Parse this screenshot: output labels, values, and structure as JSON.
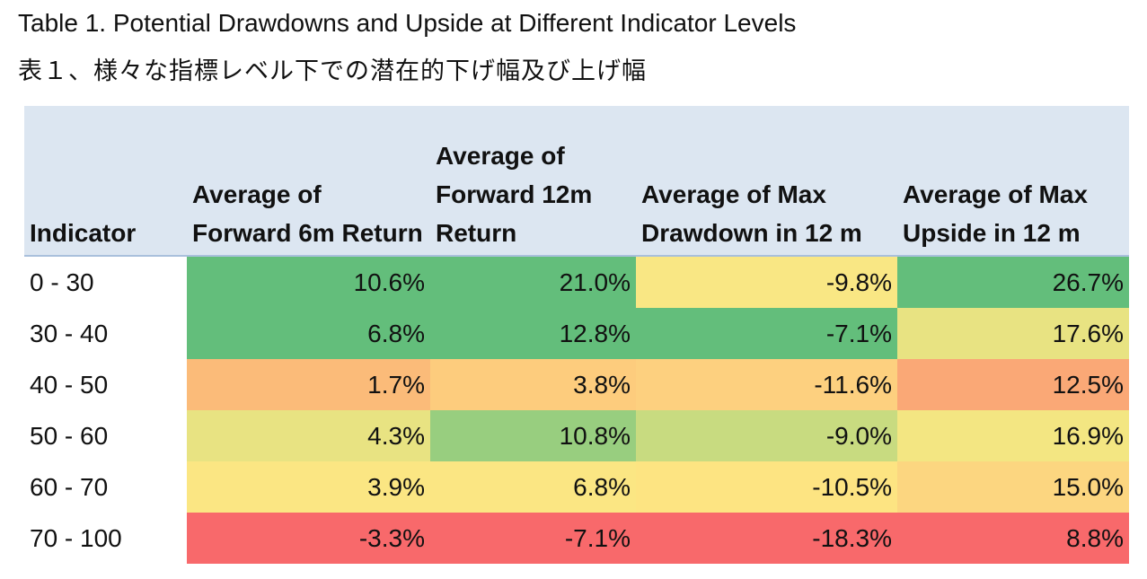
{
  "title": "Table 1. Potential Drawdowns and Upside at Different Indicator Levels",
  "subtitle": "表１、様々な指標レベル下での潜在的下げ幅及び上げ幅",
  "table": {
    "headers": [
      "Indicator",
      "Average of Forward 6m Return",
      "Average of Forward 12m Return",
      "Average of Max Drawdown in 12 m",
      "Average of Max Upside in 12 m"
    ],
    "rows": [
      {
        "indicator": "0 - 30",
        "values": [
          "10.6%",
          "21.0%",
          "-9.8%",
          "26.7%"
        ],
        "colors": [
          "#63be7b",
          "#63be7b",
          "#f9e784",
          "#63be7b"
        ]
      },
      {
        "indicator": "30 - 40",
        "values": [
          "6.8%",
          "12.8%",
          "-7.1%",
          "17.6%"
        ],
        "colors": [
          "#63be7b",
          "#63be7b",
          "#63be7b",
          "#e8e382"
        ]
      },
      {
        "indicator": "40 - 50",
        "values": [
          "1.7%",
          "3.8%",
          "-11.6%",
          "12.5%"
        ],
        "colors": [
          "#fbbb79",
          "#fdcc7d",
          "#fdd07f",
          "#faa876"
        ]
      },
      {
        "indicator": "50 - 60",
        "values": [
          "4.3%",
          "10.8%",
          "-9.0%",
          "16.9%"
        ],
        "colors": [
          "#e8e382",
          "#98ce7f",
          "#c8db80",
          "#f3e682"
        ]
      },
      {
        "indicator": "60 - 70",
        "values": [
          "3.9%",
          "6.8%",
          "-10.5%",
          "15.0%"
        ],
        "colors": [
          "#fbe683",
          "#fbe683",
          "#fde482",
          "#fcd680"
        ]
      },
      {
        "indicator": "70 - 100",
        "values": [
          "-3.3%",
          "-7.1%",
          "-18.3%",
          "8.8%"
        ],
        "colors": [
          "#f8696b",
          "#f8696b",
          "#f8696b",
          "#f8696b"
        ]
      }
    ]
  }
}
